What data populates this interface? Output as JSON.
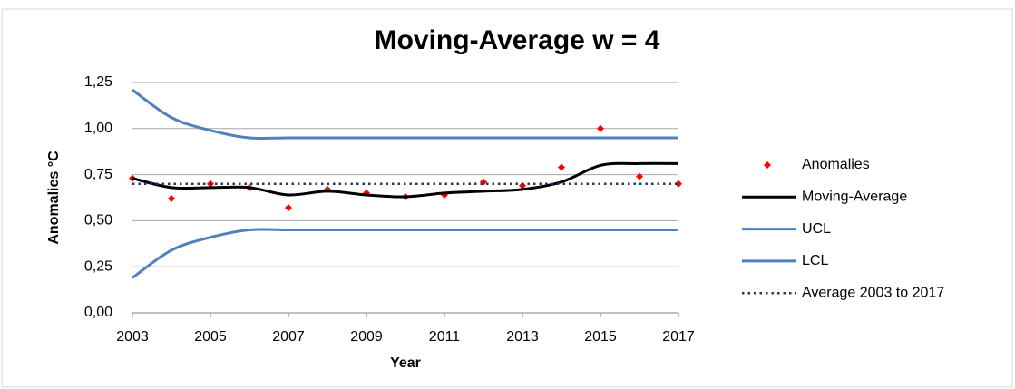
{
  "chart_data": {
    "type": "line",
    "title": "Moving-Average w = 4",
    "x_label": "Year",
    "y_label": "Anomalies °C",
    "x": [
      2003,
      2004,
      2005,
      2006,
      2007,
      2008,
      2009,
      2010,
      2011,
      2012,
      2013,
      2014,
      2015,
      2016,
      2017
    ],
    "xlim": [
      2003,
      2017
    ],
    "xticks": [
      2003,
      2005,
      2007,
      2009,
      2011,
      2013,
      2015,
      2017
    ],
    "ylim": [
      0,
      1.25
    ],
    "yticks": [
      {
        "value": 0,
        "label": "0,00"
      },
      {
        "value": 0.25,
        "label": "0,25"
      },
      {
        "value": 0.5,
        "label": "0,50"
      },
      {
        "value": 0.75,
        "label": "0,75"
      },
      {
        "value": 1,
        "label": "1,00"
      },
      {
        "value": 1.25,
        "label": "1,25"
      }
    ],
    "grid": true,
    "legend": "right",
    "series": [
      {
        "name": "Anomalies",
        "color": "#ff0000",
        "style": "marker",
        "values": [
          0.73,
          0.62,
          0.7,
          0.68,
          0.57,
          0.67,
          0.65,
          0.63,
          0.64,
          0.71,
          0.69,
          0.79,
          1.0,
          0.74,
          0.7
        ]
      },
      {
        "name": "Moving-Average",
        "color": "#000000",
        "style": "solid",
        "values": [
          0.73,
          0.68,
          0.68,
          0.68,
          0.64,
          0.66,
          0.64,
          0.63,
          0.65,
          0.66,
          0.67,
          0.71,
          0.8,
          0.81,
          0.81
        ]
      },
      {
        "name": "UCL",
        "color": "#4f81bd",
        "style": "solid",
        "values": [
          1.21,
          1.06,
          0.99,
          0.95,
          0.95,
          0.95,
          0.95,
          0.95,
          0.95,
          0.95,
          0.95,
          0.95,
          0.95,
          0.95,
          0.95
        ]
      },
      {
        "name": "LCL",
        "color": "#4f81bd",
        "style": "solid",
        "values": [
          0.19,
          0.34,
          0.41,
          0.45,
          0.45,
          0.45,
          0.45,
          0.45,
          0.45,
          0.45,
          0.45,
          0.45,
          0.45,
          0.45,
          0.45
        ]
      },
      {
        "name": "Average 2003 to 2017",
        "color": "#1f3864",
        "style": "dotted",
        "values": [
          0.7,
          0.7,
          0.7,
          0.7,
          0.7,
          0.7,
          0.7,
          0.7,
          0.7,
          0.7,
          0.7,
          0.7,
          0.7,
          0.7,
          0.7
        ]
      }
    ]
  }
}
